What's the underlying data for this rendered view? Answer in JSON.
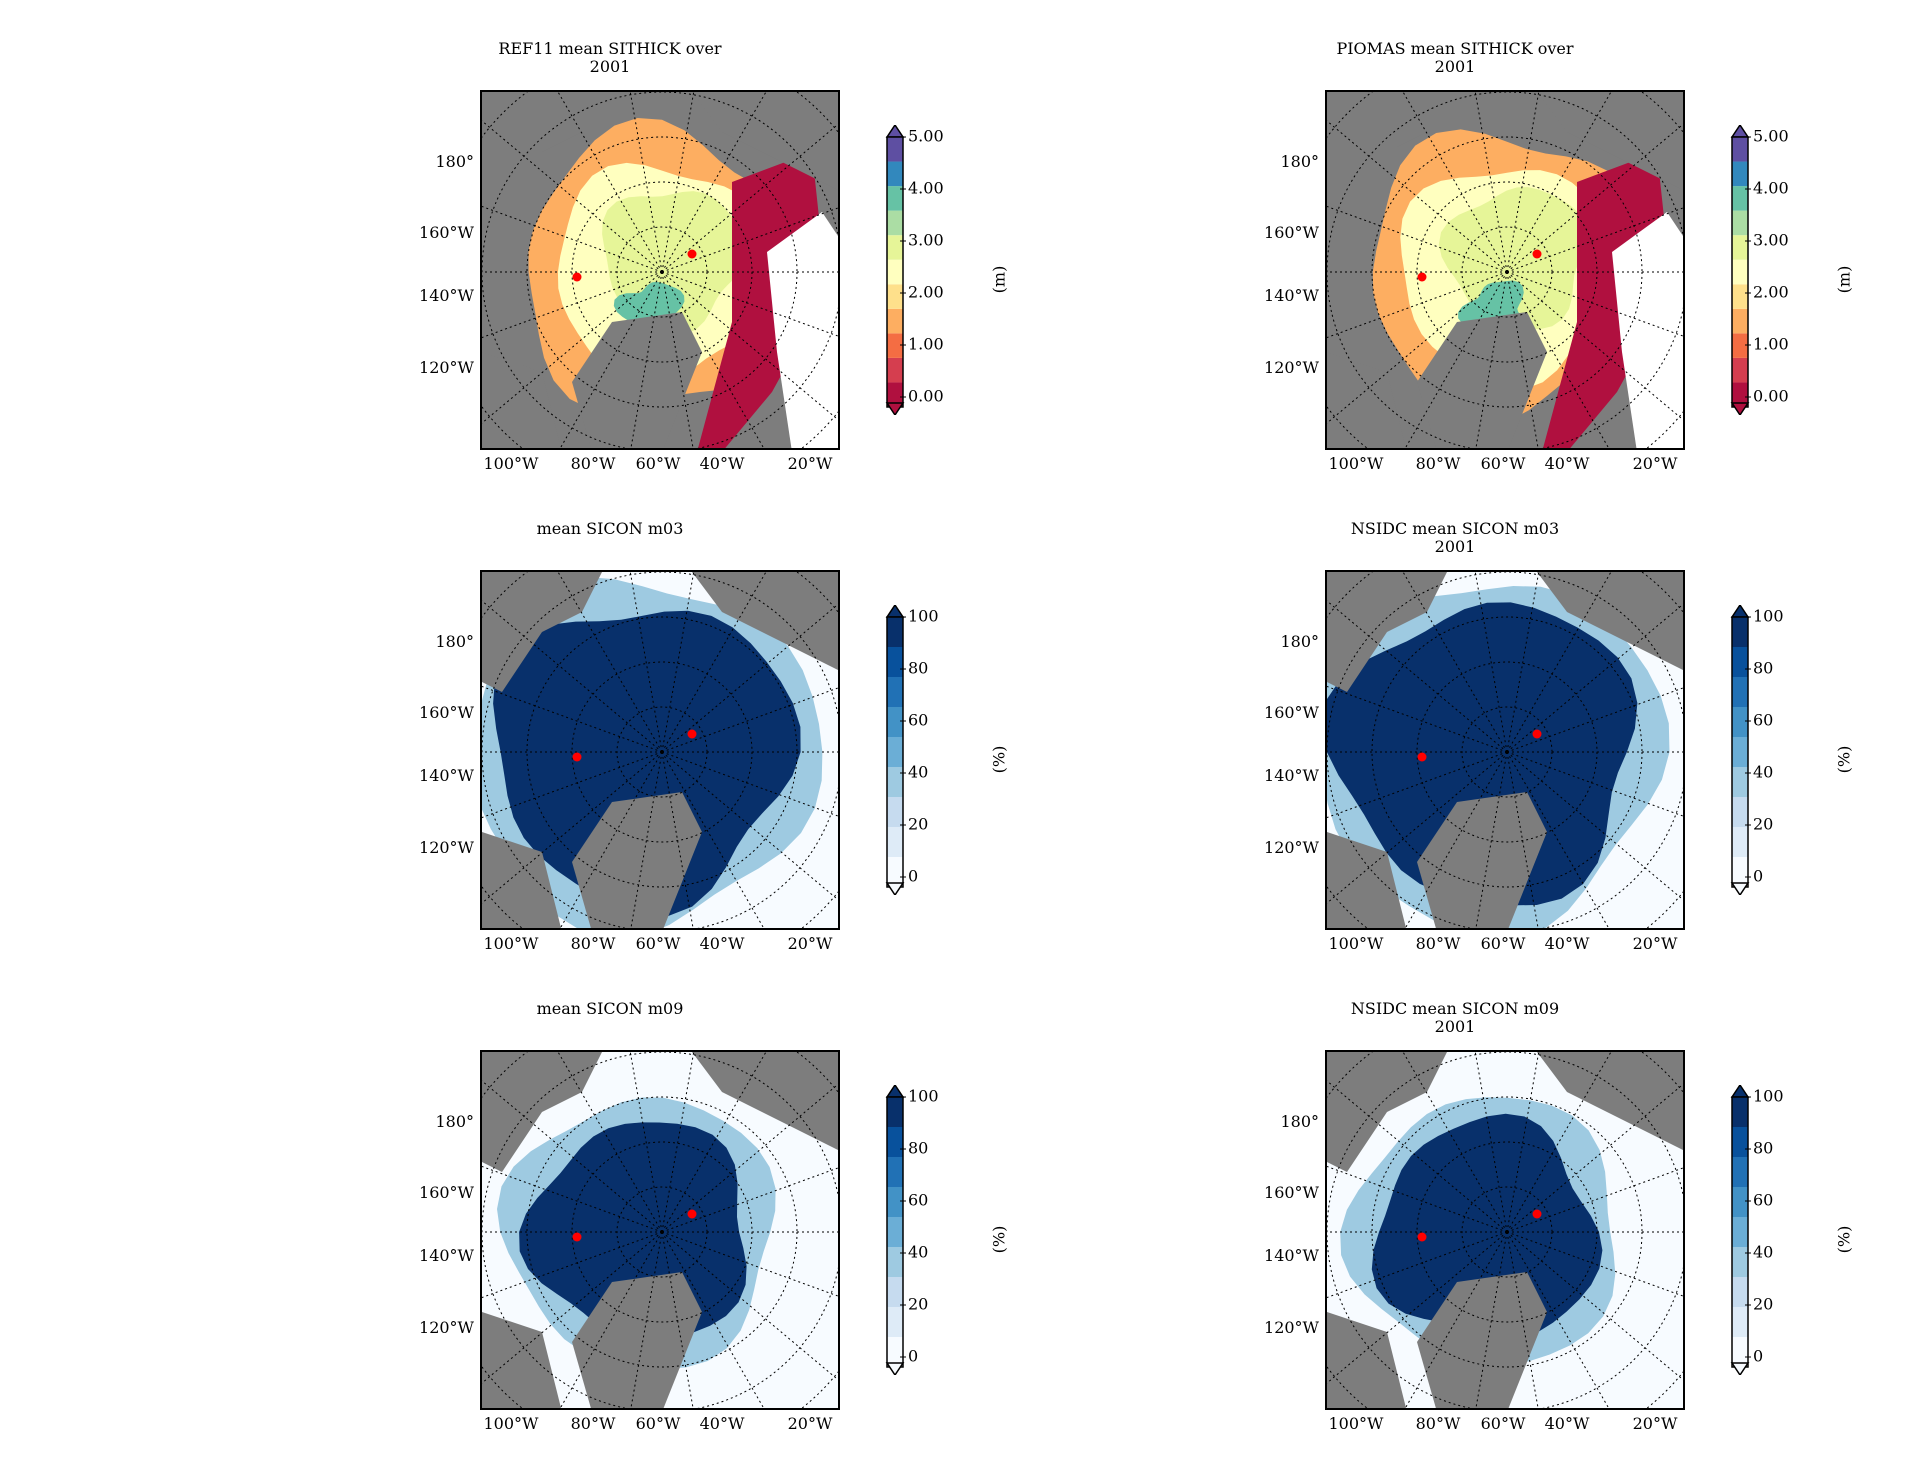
{
  "panels": [
    {
      "title": "REF11 mean SITHICK over\n2001",
      "variable": "thickness",
      "unit": "(m)",
      "ticks": [
        "5.00",
        "4.00",
        "3.00",
        "2.00",
        "1.00",
        "0.00"
      ],
      "colors": [
        "#b0103f",
        "#d53e4f",
        "#f46d43",
        "#fdae61",
        "#fee08b",
        "#ffffbf",
        "#e6f598",
        "#abdda4",
        "#66c2a5",
        "#3288bd",
        "#5e4fa2"
      ]
    },
    {
      "title": "PIOMAS mean SITHICK over\n2001",
      "variable": "thickness",
      "unit": "(m)",
      "ticks": [
        "5.00",
        "4.00",
        "3.00",
        "2.00",
        "1.00",
        "0.00"
      ],
      "colors": [
        "#b0103f",
        "#d53e4f",
        "#f46d43",
        "#fdae61",
        "#fee08b",
        "#ffffbf",
        "#e6f598",
        "#abdda4",
        "#66c2a5",
        "#3288bd",
        "#5e4fa2"
      ]
    },
    {
      "title": "mean SICON m03",
      "variable": "concentration",
      "unit": "(%)",
      "ticks": [
        "100",
        "80",
        "60",
        "40",
        "20",
        "0"
      ],
      "colors": [
        "#f7fbff",
        "#deebf7",
        "#c6dbef",
        "#9ecae1",
        "#6baed6",
        "#4292c6",
        "#2171b5",
        "#08519c",
        "#08306b"
      ]
    },
    {
      "title": "NSIDC mean SICON m03\n2001",
      "variable": "concentration",
      "unit": "(%)",
      "ticks": [
        "100",
        "80",
        "60",
        "40",
        "20",
        "0"
      ],
      "colors": [
        "#f7fbff",
        "#deebf7",
        "#c6dbef",
        "#9ecae1",
        "#6baed6",
        "#4292c6",
        "#2171b5",
        "#08519c",
        "#08306b"
      ]
    },
    {
      "title": "mean SICON m09",
      "variable": "concentration",
      "unit": "(%)",
      "ticks": [
        "100",
        "80",
        "60",
        "40",
        "20",
        "0"
      ],
      "colors": [
        "#f7fbff",
        "#deebf7",
        "#c6dbef",
        "#9ecae1",
        "#6baed6",
        "#4292c6",
        "#2171b5",
        "#08519c",
        "#08306b"
      ]
    },
    {
      "title": "NSIDC mean SICON m09\n2001",
      "variable": "concentration",
      "unit": "(%)",
      "ticks": [
        "100",
        "80",
        "60",
        "40",
        "20",
        "0"
      ],
      "colors": [
        "#f7fbff",
        "#deebf7",
        "#c6dbef",
        "#9ecae1",
        "#6baed6",
        "#4292c6",
        "#2171b5",
        "#08519c",
        "#08306b"
      ]
    }
  ],
  "left_labels": [
    "180°",
    "160°W",
    "140°W",
    "120°W"
  ],
  "bottom_labels": [
    "100°W",
    "80°W",
    "60°W",
    "40°W",
    "20°W"
  ],
  "land_color": "#7d7d7d"
}
